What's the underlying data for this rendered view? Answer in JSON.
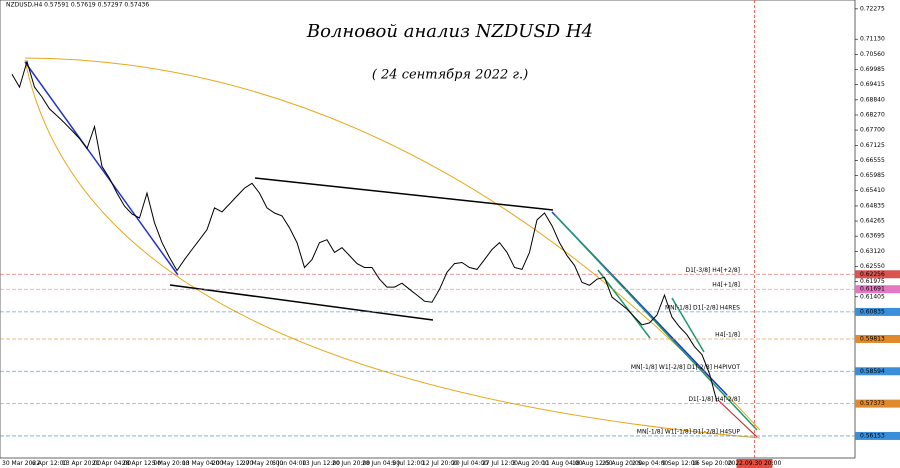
{
  "chart_data": {
    "type": "line",
    "title": "Волновой анализ NZDUSD H4",
    "subtitle": "( 24 сентября 2022 г.)",
    "symbol_info": "NZDUSD,H4  0.57591 0.57619 0.57297 0.57436",
    "color": "#000000",
    "categories": [
      "30 Mar 2022",
      null,
      null,
      null,
      "6 Apr 12:00",
      null,
      null,
      null,
      "13 Apr 20:00",
      null,
      null,
      null,
      "21 Apr 04:00",
      null,
      null,
      null,
      "28 Apr 12:00",
      null,
      null,
      null,
      "5 May 20:00",
      null,
      null,
      null,
      "13 May 04:00",
      null,
      null,
      null,
      "20 May 12:00",
      null,
      null,
      null,
      "27 May 20:00",
      null,
      null,
      null,
      "6 Jun 04:00",
      null,
      null,
      null,
      "13 Jun 12:00",
      null,
      null,
      null,
      "20 Jun 20:00",
      null,
      null,
      null,
      "28 Jun 04:00",
      null,
      null,
      null,
      "5 Jul 12:00",
      null,
      null,
      null,
      "12 Jul 20:00",
      null,
      null,
      null,
      "20 Jul 04:00",
      null,
      null,
      null,
      "27 Jul 12:00",
      null,
      null,
      null,
      "3 Aug 20:00",
      null,
      null,
      null,
      "11 Aug 04:00",
      null,
      null,
      null,
      "18 Aug 12:00",
      null,
      null,
      null,
      "25 Aug 20:00",
      null,
      null,
      null,
      "2 Sep 04:00",
      null,
      null,
      null,
      "9 Sep 12:00",
      null,
      null,
      null,
      "16 Sep 20:00",
      null,
      null,
      null,
      null,
      null,
      null,
      "2022.09.30 20:00"
    ],
    "values": [
      0.6981,
      0.6932,
      0.7029,
      0.6932,
      0.6895,
      0.685,
      0.6824,
      0.6797,
      0.6768,
      0.6738,
      0.67,
      0.6783,
      0.6633,
      0.6588,
      0.6532,
      0.6483,
      0.6453,
      0.6438,
      0.6532,
      0.642,
      0.6345,
      0.6289,
      0.624,
      0.6281,
      0.6319,
      0.6356,
      0.6394,
      0.6476,
      0.6461,
      0.6491,
      0.6521,
      0.6551,
      0.6569,
      0.6532,
      0.6476,
      0.6457,
      0.6446,
      0.6401,
      0.6345,
      0.6251,
      0.6281,
      0.6345,
      0.6356,
      0.6308,
      0.6326,
      0.6296,
      0.6266,
      0.6251,
      0.6251,
      0.6207,
      0.6177,
      0.6177,
      0.6192,
      0.6169,
      0.6147,
      0.6124,
      0.612,
      0.6169,
      0.6233,
      0.6266,
      0.627,
      0.6251,
      0.6244,
      0.6281,
      0.6319,
      0.6345,
      0.6308,
      0.6251,
      0.6244,
      0.6308,
      0.6431,
      0.6457,
      0.6409,
      0.6345,
      0.6296,
      0.6259,
      0.6195,
      0.6184,
      0.6207,
      0.6214,
      0.6139,
      0.6117,
      0.6094,
      0.6064,
      0.6035,
      0.6042,
      0.6072,
      0.6147,
      0.6064,
      0.6027,
      0.5997,
      0.5952,
      0.5922,
      0.585,
      0.5744,
      null,
      null,
      null,
      null,
      null
    ],
    "ylim": [
      0.5532,
      0.7261
    ],
    "yticks": [
      0.72275,
      {
        "value": 0.7113,
        "label": "0.71130"
      },
      {
        "value": 0.7056,
        "label": "0.70560"
      },
      0.69985,
      0.69415,
      {
        "value": 0.6884,
        "label": "0.68840"
      },
      {
        "value": 0.6827,
        "label": "0.68270"
      },
      {
        "value": 0.677,
        "label": "0.67700"
      },
      0.67125,
      0.66555,
      0.65985,
      {
        "value": 0.6541,
        "label": "0.65410"
      },
      0.64835,
      0.64265,
      0.63695,
      {
        "value": 0.6312,
        "label": "0.63120"
      },
      {
        "value": 0.6255,
        "label": "0.62550"
      },
      0.61975,
      0.61405
    ],
    "levels": [
      {
        "name": "D1[-3/8] H4[+2/8]",
        "value": 0.62256,
        "color": "#d9534f"
      },
      {
        "name": "H4[+1/8]",
        "value": 0.61691,
        "color": "#e377c2"
      },
      {
        "name": "MN[-1/8] D1[-2/8] H4RES",
        "value": 0.60835,
        "color": "#3a8fd8"
      },
      {
        "name": "H4[-1/8]",
        "value": 0.59813,
        "color": "#e08a2e"
      },
      {
        "name": "MN[-1/8] W1[-2/8] D1[-2/8] H4PIVOT",
        "value": 0.58594,
        "color": "#3a8fd8"
      },
      {
        "name": "D1[-1/8] H4[-2/8]",
        "value": 0.57373,
        "color": "#e08a2e"
      },
      {
        "name": "MN[-1/8] W1[-1/8] D1[-2/8] H4SUP",
        "value": 0.56153,
        "color": "#3a8fd8"
      }
    ]
  }
}
